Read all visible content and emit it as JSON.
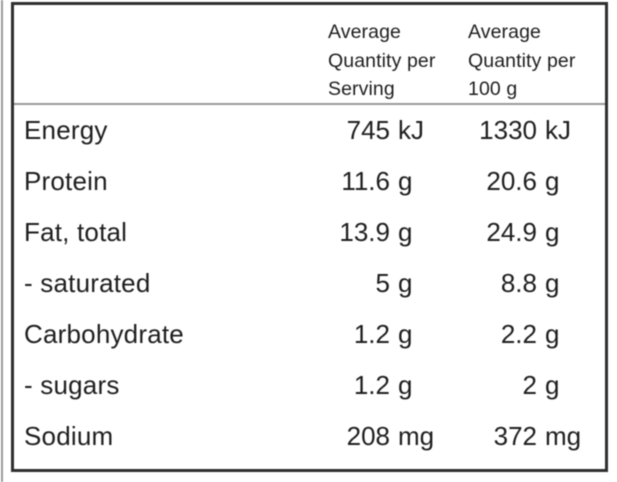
{
  "colors": {
    "text": "#1e1e1e",
    "border": "#2e2e2e",
    "separator": "#999999",
    "background": "#ffffff",
    "edge_line": "#9a9a9a"
  },
  "table": {
    "columns": [
      {
        "line1": "Average",
        "line2": "Quantity per",
        "line3": "Serving"
      },
      {
        "line1": "Average",
        "line2": "Quantity per",
        "line3": "100 g"
      }
    ],
    "rows": [
      {
        "label": "Energy",
        "serving_value": "745",
        "serving_unit": "kJ",
        "per_100g_value": "1330",
        "per_100g_unit": "kJ"
      },
      {
        "label": "Protein",
        "serving_value": "11.6",
        "serving_unit": "g",
        "per_100g_value": "20.6",
        "per_100g_unit": "g"
      },
      {
        "label": "Fat, total",
        "serving_value": "13.9",
        "serving_unit": "g",
        "per_100g_value": "24.9",
        "per_100g_unit": "g"
      },
      {
        "label": "- saturated",
        "serving_value": "5",
        "serving_unit": "g",
        "per_100g_value": "8.8",
        "per_100g_unit": "g"
      },
      {
        "label": "Carbohydrate",
        "serving_value": "1.2",
        "serving_unit": "g",
        "per_100g_value": "2.2",
        "per_100g_unit": "g"
      },
      {
        "label": "- sugars",
        "serving_value": "1.2",
        "serving_unit": "g",
        "per_100g_value": "2",
        "per_100g_unit": "g"
      },
      {
        "label": "Sodium",
        "serving_value": "208",
        "serving_unit": "mg",
        "per_100g_value": "372",
        "per_100g_unit": "mg"
      }
    ]
  }
}
